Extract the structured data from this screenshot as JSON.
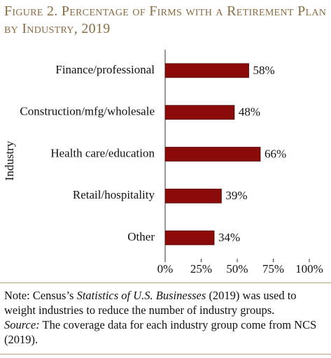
{
  "chart_data": {
    "type": "barh",
    "title": "Figure 2. Percentage of Firms with a Retirement Plan by Industry, 2019",
    "y_label": "Industry",
    "categories": [
      "Finance/professional",
      "Construction/mfg/wholesale",
      "Health care/education",
      "Retail/hospitality",
      "Other"
    ],
    "values": [
      58,
      48,
      66,
      39,
      34
    ],
    "value_labels": [
      "58%",
      "48%",
      "66%",
      "39%",
      "34%"
    ],
    "color": "#8b0a0a",
    "xlim": [
      0,
      100
    ],
    "xticks": [
      {
        "value": 0,
        "label": "0%"
      },
      {
        "value": 25,
        "label": "25%"
      },
      {
        "value": 50,
        "label": "50%"
      },
      {
        "value": 75,
        "label": "75%"
      },
      {
        "value": 100,
        "label": "100%"
      }
    ],
    "note_prefix": "Note: Census’s ",
    "note_italic": "Statistics of U.S. Businesses",
    "note_suffix": " (2019) was used to weight industries to reduce the number of industry groups.",
    "source_label": "Source:",
    "source_text": " The coverage data for each industry group come from NCS (2019)."
  }
}
